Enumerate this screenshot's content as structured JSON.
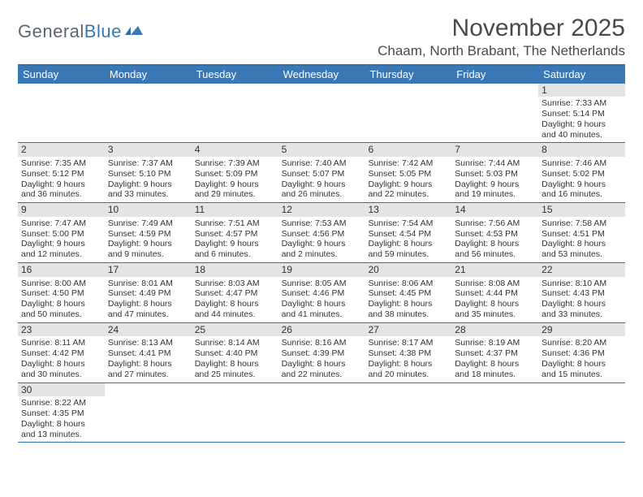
{
  "logo": {
    "text1": "General",
    "text2": "Blue"
  },
  "title": "November 2025",
  "location": "Chaam, North Brabant, The Netherlands",
  "colors": {
    "header_bg": "#3a78b5",
    "border": "#2f6fab",
    "daynum_bg": "#e4e4e4",
    "text": "#333333"
  },
  "weekdays": [
    "Sunday",
    "Monday",
    "Tuesday",
    "Wednesday",
    "Thursday",
    "Friday",
    "Saturday"
  ],
  "weeks": [
    [
      null,
      null,
      null,
      null,
      null,
      null,
      {
        "n": "1",
        "sr": "Sunrise: 7:33 AM",
        "ss": "Sunset: 5:14 PM",
        "dl": "Daylight: 9 hours and 40 minutes."
      }
    ],
    [
      {
        "n": "2",
        "sr": "Sunrise: 7:35 AM",
        "ss": "Sunset: 5:12 PM",
        "dl": "Daylight: 9 hours and 36 minutes."
      },
      {
        "n": "3",
        "sr": "Sunrise: 7:37 AM",
        "ss": "Sunset: 5:10 PM",
        "dl": "Daylight: 9 hours and 33 minutes."
      },
      {
        "n": "4",
        "sr": "Sunrise: 7:39 AM",
        "ss": "Sunset: 5:09 PM",
        "dl": "Daylight: 9 hours and 29 minutes."
      },
      {
        "n": "5",
        "sr": "Sunrise: 7:40 AM",
        "ss": "Sunset: 5:07 PM",
        "dl": "Daylight: 9 hours and 26 minutes."
      },
      {
        "n": "6",
        "sr": "Sunrise: 7:42 AM",
        "ss": "Sunset: 5:05 PM",
        "dl": "Daylight: 9 hours and 22 minutes."
      },
      {
        "n": "7",
        "sr": "Sunrise: 7:44 AM",
        "ss": "Sunset: 5:03 PM",
        "dl": "Daylight: 9 hours and 19 minutes."
      },
      {
        "n": "8",
        "sr": "Sunrise: 7:46 AM",
        "ss": "Sunset: 5:02 PM",
        "dl": "Daylight: 9 hours and 16 minutes."
      }
    ],
    [
      {
        "n": "9",
        "sr": "Sunrise: 7:47 AM",
        "ss": "Sunset: 5:00 PM",
        "dl": "Daylight: 9 hours and 12 minutes."
      },
      {
        "n": "10",
        "sr": "Sunrise: 7:49 AM",
        "ss": "Sunset: 4:59 PM",
        "dl": "Daylight: 9 hours and 9 minutes."
      },
      {
        "n": "11",
        "sr": "Sunrise: 7:51 AM",
        "ss": "Sunset: 4:57 PM",
        "dl": "Daylight: 9 hours and 6 minutes."
      },
      {
        "n": "12",
        "sr": "Sunrise: 7:53 AM",
        "ss": "Sunset: 4:56 PM",
        "dl": "Daylight: 9 hours and 2 minutes."
      },
      {
        "n": "13",
        "sr": "Sunrise: 7:54 AM",
        "ss": "Sunset: 4:54 PM",
        "dl": "Daylight: 8 hours and 59 minutes."
      },
      {
        "n": "14",
        "sr": "Sunrise: 7:56 AM",
        "ss": "Sunset: 4:53 PM",
        "dl": "Daylight: 8 hours and 56 minutes."
      },
      {
        "n": "15",
        "sr": "Sunrise: 7:58 AM",
        "ss": "Sunset: 4:51 PM",
        "dl": "Daylight: 8 hours and 53 minutes."
      }
    ],
    [
      {
        "n": "16",
        "sr": "Sunrise: 8:00 AM",
        "ss": "Sunset: 4:50 PM",
        "dl": "Daylight: 8 hours and 50 minutes."
      },
      {
        "n": "17",
        "sr": "Sunrise: 8:01 AM",
        "ss": "Sunset: 4:49 PM",
        "dl": "Daylight: 8 hours and 47 minutes."
      },
      {
        "n": "18",
        "sr": "Sunrise: 8:03 AM",
        "ss": "Sunset: 4:47 PM",
        "dl": "Daylight: 8 hours and 44 minutes."
      },
      {
        "n": "19",
        "sr": "Sunrise: 8:05 AM",
        "ss": "Sunset: 4:46 PM",
        "dl": "Daylight: 8 hours and 41 minutes."
      },
      {
        "n": "20",
        "sr": "Sunrise: 8:06 AM",
        "ss": "Sunset: 4:45 PM",
        "dl": "Daylight: 8 hours and 38 minutes."
      },
      {
        "n": "21",
        "sr": "Sunrise: 8:08 AM",
        "ss": "Sunset: 4:44 PM",
        "dl": "Daylight: 8 hours and 35 minutes."
      },
      {
        "n": "22",
        "sr": "Sunrise: 8:10 AM",
        "ss": "Sunset: 4:43 PM",
        "dl": "Daylight: 8 hours and 33 minutes."
      }
    ],
    [
      {
        "n": "23",
        "sr": "Sunrise: 8:11 AM",
        "ss": "Sunset: 4:42 PM",
        "dl": "Daylight: 8 hours and 30 minutes."
      },
      {
        "n": "24",
        "sr": "Sunrise: 8:13 AM",
        "ss": "Sunset: 4:41 PM",
        "dl": "Daylight: 8 hours and 27 minutes."
      },
      {
        "n": "25",
        "sr": "Sunrise: 8:14 AM",
        "ss": "Sunset: 4:40 PM",
        "dl": "Daylight: 8 hours and 25 minutes."
      },
      {
        "n": "26",
        "sr": "Sunrise: 8:16 AM",
        "ss": "Sunset: 4:39 PM",
        "dl": "Daylight: 8 hours and 22 minutes."
      },
      {
        "n": "27",
        "sr": "Sunrise: 8:17 AM",
        "ss": "Sunset: 4:38 PM",
        "dl": "Daylight: 8 hours and 20 minutes."
      },
      {
        "n": "28",
        "sr": "Sunrise: 8:19 AM",
        "ss": "Sunset: 4:37 PM",
        "dl": "Daylight: 8 hours and 18 minutes."
      },
      {
        "n": "29",
        "sr": "Sunrise: 8:20 AM",
        "ss": "Sunset: 4:36 PM",
        "dl": "Daylight: 8 hours and 15 minutes."
      }
    ],
    [
      {
        "n": "30",
        "sr": "Sunrise: 8:22 AM",
        "ss": "Sunset: 4:35 PM",
        "dl": "Daylight: 8 hours and 13 minutes."
      },
      null,
      null,
      null,
      null,
      null,
      null
    ]
  ]
}
